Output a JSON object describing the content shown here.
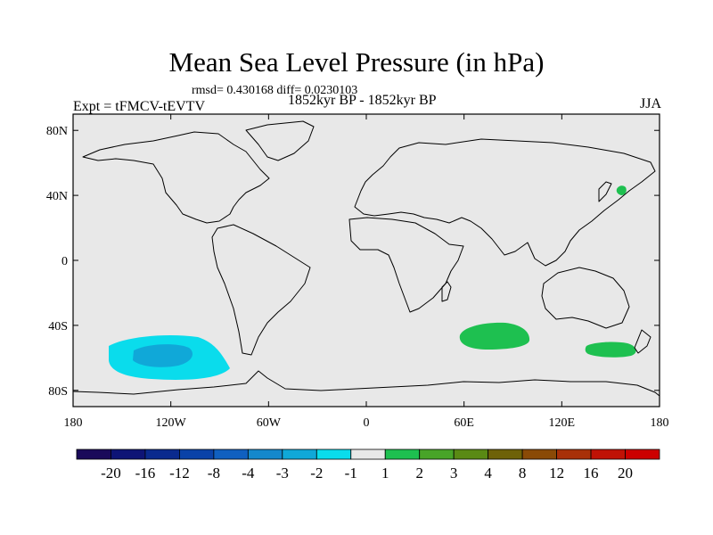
{
  "chart_data": {
    "type": "map",
    "title": "Mean Sea Level Pressure (in hPa)",
    "stats": "rmsd= 0.430168 diff= 0.0230103",
    "experiment": "Expt = tFMCV-tEVTV",
    "period": "1852kyr BP - 1852kyr BP",
    "season": "JJA",
    "xlim": [
      -180,
      180
    ],
    "ylim": [
      -90,
      90
    ],
    "x_ticks": [
      -180,
      -120,
      -60,
      0,
      60,
      120,
      180
    ],
    "x_tick_labels": [
      "180",
      "120W",
      "60W",
      "0",
      "60E",
      "120E",
      "180"
    ],
    "y_ticks": [
      80,
      40,
      0,
      -40,
      -80
    ],
    "y_tick_labels": [
      "80N",
      "40N",
      "0",
      "40S",
      "80S"
    ],
    "colorbar": {
      "labels": [
        "-20",
        "-16",
        "-12",
        "-8",
        "-4",
        "-3",
        "-2",
        "-1",
        "1",
        "2",
        "3",
        "4",
        "8",
        "12",
        "16",
        "20"
      ],
      "colors": [
        "#1a0a5a",
        "#0e1476",
        "#0a2a8e",
        "#0a42a8",
        "#1060c0",
        "#1488cc",
        "#10a8d8",
        "#0adcec",
        "#e8e8e8",
        "#1ec050",
        "#48a428",
        "#5a8a14",
        "#6e6208",
        "#8a4a06",
        "#a83008",
        "#c01206",
        "#cc0000"
      ]
    },
    "anomaly_regions": [
      {
        "name": "south-pacific-low",
        "lon": [
          -160,
          -85
        ],
        "lat": [
          -70,
          -44
        ],
        "level": "-2 to -1",
        "core_level": "-3 to -2"
      },
      {
        "name": "south-indian-high",
        "lon": [
          58,
          102
        ],
        "lat": [
          -52,
          -35
        ],
        "level": "1 to 2"
      },
      {
        "name": "south-of-australia-high",
        "lon": [
          135,
          162
        ],
        "lat": [
          -58,
          -48
        ],
        "level": "1 to 2"
      },
      {
        "name": "north-pacific-high",
        "lon": [
          154,
          160
        ],
        "lat": [
          42,
          48
        ],
        "level": "1 to 2"
      }
    ]
  }
}
